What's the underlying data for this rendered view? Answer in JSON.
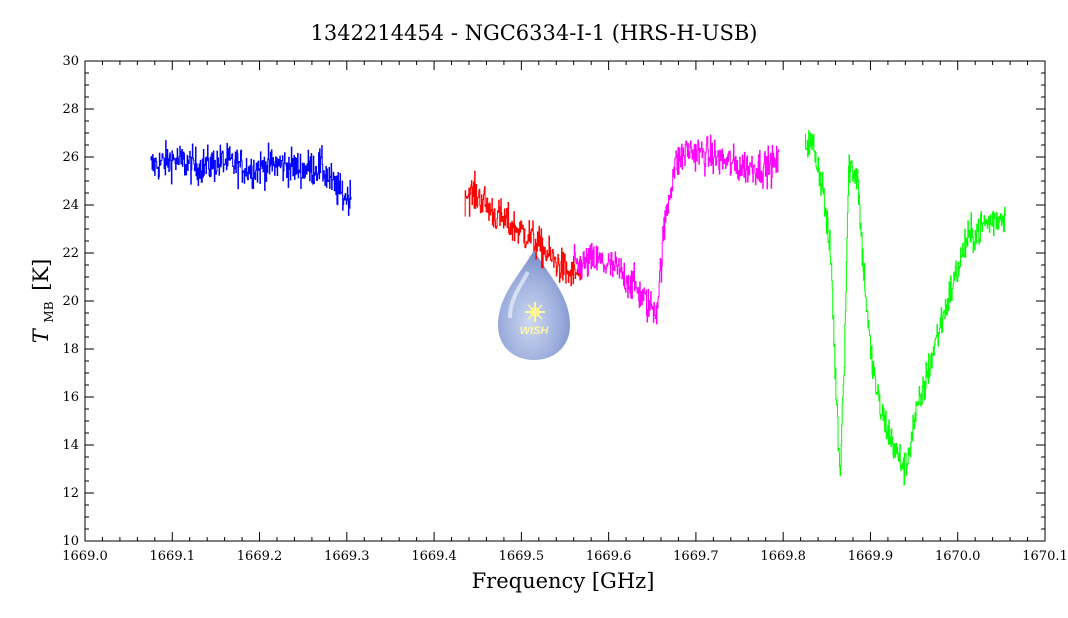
{
  "chart_data": {
    "type": "line",
    "title": "1342214454 - NGC6334-I-1 (HRS-H-USB)",
    "xlabel": "Frequency [GHz]",
    "ylabel_main": "T",
    "ylabel_sub": "MB",
    "ylabel_unit": "[K]",
    "xlim": [
      1669.0,
      1670.1
    ],
    "ylim": [
      10,
      30
    ],
    "x_ticks": [
      "1669.0",
      "1669.1",
      "1669.2",
      "1669.3",
      "1669.4",
      "1669.5",
      "1669.6",
      "1669.7",
      "1669.8",
      "1669.9",
      "1670.0",
      "1670.1"
    ],
    "y_ticks": [
      "10",
      "12",
      "14",
      "16",
      "18",
      "20",
      "22",
      "24",
      "26",
      "28",
      "30"
    ],
    "grid": false,
    "legend": "none",
    "logo_text": "WISH",
    "series": [
      {
        "color": "#0000ff",
        "x": [
          1669.075,
          1669.1,
          1669.13,
          1669.16,
          1669.19,
          1669.22,
          1669.25,
          1669.27,
          1669.285,
          1669.295,
          1669.305
        ],
        "y": [
          25.6,
          25.9,
          25.6,
          25.8,
          25.5,
          25.7,
          25.5,
          25.6,
          24.8,
          24.4,
          24.3
        ]
      },
      {
        "color": "#ff0000",
        "x": [
          1669.435,
          1669.45,
          1669.47,
          1669.49,
          1669.51,
          1669.525,
          1669.54,
          1669.555,
          1669.57
        ],
        "y": [
          24.5,
          24.4,
          23.6,
          23.1,
          22.7,
          22.1,
          21.6,
          21.1,
          21.2
        ]
      },
      {
        "color": "#ff00ff",
        "x": [
          1669.56,
          1669.585,
          1669.61,
          1669.63,
          1669.645,
          1669.655,
          1669.665,
          1669.675,
          1669.69,
          1669.72,
          1669.75,
          1669.775,
          1669.795
        ],
        "y": [
          21.4,
          21.7,
          21.3,
          20.6,
          19.8,
          19.7,
          23.5,
          25.6,
          26.3,
          26.0,
          25.6,
          25.6,
          25.7
        ]
      },
      {
        "color": "#00ff00",
        "x": [
          1669.825,
          1669.835,
          1669.845,
          1669.855,
          1669.86,
          1669.865,
          1669.87,
          1669.875,
          1669.885,
          1669.89,
          1669.895,
          1669.9,
          1669.91,
          1669.92,
          1669.93,
          1669.94,
          1669.95,
          1669.96,
          1669.975,
          1669.99,
          1670.01,
          1670.03,
          1670.055
        ],
        "y": [
          26.7,
          26.4,
          24.8,
          21.5,
          16.5,
          12.8,
          18.0,
          25.7,
          25.2,
          22.3,
          20.0,
          17.8,
          15.6,
          14.6,
          13.6,
          13.0,
          15.0,
          16.2,
          18.4,
          20.2,
          22.5,
          23.2,
          23.6
        ]
      }
    ]
  }
}
